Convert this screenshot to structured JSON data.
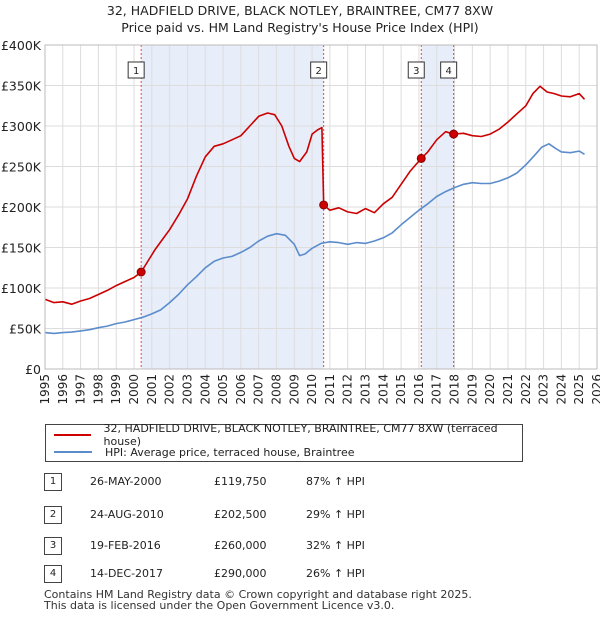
{
  "title": {
    "line1": "32, HADFIELD DRIVE, BLACK NOTLEY, BRAINTREE, CM77 8XW",
    "line2": "Price paid vs. HM Land Registry's House Price Index (HPI)"
  },
  "colors": {
    "property": "#cc0000",
    "hpi": "#5b8ccc",
    "shade": "#e8eef9",
    "marker_border": "#333333"
  },
  "chart_data": {
    "type": "line",
    "ylim": [
      0,
      400000
    ],
    "xlim": [
      1995,
      2026
    ],
    "y_ticks": [
      {
        "value": 0,
        "label": "£0"
      },
      {
        "value": 50000,
        "label": "£50K"
      },
      {
        "value": 100000,
        "label": "£100K"
      },
      {
        "value": 150000,
        "label": "£150K"
      },
      {
        "value": 200000,
        "label": "£200K"
      },
      {
        "value": 250000,
        "label": "£250K"
      },
      {
        "value": 300000,
        "label": "£300K"
      },
      {
        "value": 350000,
        "label": "£350K"
      },
      {
        "value": 400000,
        "label": "£400K"
      }
    ],
    "x_ticks": [
      "1995",
      "1996",
      "1997",
      "1998",
      "1999",
      "2000",
      "2001",
      "2002",
      "2003",
      "2004",
      "2005",
      "2006",
      "2007",
      "2008",
      "2009",
      "2010",
      "2011",
      "2012",
      "2013",
      "2014",
      "2015",
      "2016",
      "2017",
      "2018",
      "2019",
      "2020",
      "2021",
      "2022",
      "2023",
      "2024",
      "2025",
      "2026"
    ],
    "shaded_periods": [
      [
        2000.4,
        2010.65
      ],
      [
        2016.13,
        2017.95
      ]
    ],
    "sales": [
      {
        "id": "1",
        "x": 2000.4,
        "y": 119750
      },
      {
        "id": "2",
        "x": 2010.65,
        "y": 202500
      },
      {
        "id": "3",
        "x": 2016.13,
        "y": 260000
      },
      {
        "id": "4",
        "x": 2017.95,
        "y": 290000
      }
    ],
    "series": [
      {
        "name": "32, HADFIELD DRIVE, BLACK NOTLEY, BRAINTREE, CM77 8XW (terraced house)",
        "color": "#cc0000",
        "x": [
          1995,
          1995.5,
          1996,
          1996.5,
          1997,
          1997.5,
          1998,
          1998.5,
          1999,
          1999.5,
          2000,
          2000.4,
          2000.8,
          2001.2,
          2001.6,
          2002,
          2002.5,
          2003,
          2003.5,
          2004,
          2004.5,
          2005,
          2005.5,
          2006,
          2006.5,
          2007,
          2007.5,
          2007.9,
          2008.3,
          2008.7,
          2009,
          2009.3,
          2009.7,
          2010,
          2010.3,
          2010.55,
          2010.65,
          2011,
          2011.5,
          2012,
          2012.5,
          2013,
          2013.5,
          2014,
          2014.5,
          2015,
          2015.5,
          2016.13,
          2016.5,
          2017,
          2017.5,
          2017.95,
          2018.5,
          2019,
          2019.5,
          2020,
          2020.5,
          2021,
          2021.5,
          2022,
          2022.4,
          2022.8,
          2023.2,
          2023.6,
          2024,
          2024.5,
          2025,
          2025.3
        ],
        "y": [
          86000,
          82000,
          83000,
          80000,
          84000,
          87000,
          92000,
          97000,
          103000,
          108000,
          113000,
          119750,
          134000,
          148000,
          160000,
          172000,
          190000,
          210000,
          238000,
          262000,
          275000,
          278000,
          283000,
          288000,
          300000,
          312000,
          316000,
          314000,
          300000,
          275000,
          260000,
          256000,
          268000,
          290000,
          295000,
          298000,
          202500,
          196000,
          199000,
          194000,
          192000,
          198000,
          193000,
          204000,
          212000,
          228000,
          244000,
          260000,
          268000,
          283000,
          293000,
          290000,
          291000,
          288000,
          287000,
          290000,
          296000,
          305000,
          315000,
          325000,
          340000,
          349000,
          342000,
          340000,
          337000,
          336000,
          340000,
          333000
        ]
      },
      {
        "name": "HPI: Average price, terraced house, Braintree",
        "color": "#5b8ccc",
        "x": [
          1995,
          1995.5,
          1996,
          1996.5,
          1997,
          1997.5,
          1998,
          1998.5,
          1999,
          1999.5,
          2000,
          2000.5,
          2001,
          2001.5,
          2002,
          2002.5,
          2003,
          2003.5,
          2004,
          2004.5,
          2005,
          2005.5,
          2006,
          2006.5,
          2007,
          2007.5,
          2008,
          2008.5,
          2009,
          2009.3,
          2009.6,
          2010,
          2010.5,
          2011,
          2011.5,
          2012,
          2012.5,
          2013,
          2013.5,
          2014,
          2014.5,
          2015,
          2015.5,
          2016,
          2016.5,
          2017,
          2017.5,
          2018,
          2018.5,
          2019,
          2019.5,
          2020,
          2020.5,
          2021,
          2021.5,
          2022,
          2022.5,
          2022.9,
          2023.3,
          2023.7,
          2024,
          2024.5,
          2025,
          2025.3
        ],
        "y": [
          45000,
          44000,
          45000,
          45500,
          47000,
          48500,
          51000,
          53000,
          56000,
          58000,
          61000,
          64000,
          68000,
          73000,
          82000,
          92000,
          104000,
          114000,
          125000,
          133000,
          137000,
          139000,
          144000,
          150000,
          158000,
          164000,
          167000,
          165000,
          154000,
          140000,
          142000,
          149000,
          155000,
          157000,
          156000,
          154000,
          156000,
          155000,
          158000,
          162000,
          168000,
          178000,
          187000,
          196000,
          204000,
          213000,
          219000,
          224000,
          228000,
          230000,
          229000,
          229000,
          232000,
          236000,
          242000,
          252000,
          264000,
          274000,
          278000,
          272000,
          268000,
          267000,
          269000,
          265000
        ]
      }
    ]
  },
  "legend": {
    "property": "32, HADFIELD DRIVE, BLACK NOTLEY, BRAINTREE, CM77 8XW (terraced house)",
    "hpi": "HPI: Average price, terraced house, Braintree"
  },
  "sales_table": [
    {
      "num": "1",
      "date": "26-MAY-2000",
      "price": "£119,750",
      "hpi": "87% ↑ HPI"
    },
    {
      "num": "2",
      "date": "24-AUG-2010",
      "price": "£202,500",
      "hpi": "29% ↑ HPI"
    },
    {
      "num": "3",
      "date": "19-FEB-2016",
      "price": "£260,000",
      "hpi": "32% ↑ HPI"
    },
    {
      "num": "4",
      "date": "14-DEC-2017",
      "price": "£290,000",
      "hpi": "26% ↑ HPI"
    }
  ],
  "footer": {
    "line1": "Contains HM Land Registry data © Crown copyright and database right 2025.",
    "line2": "This data is licensed under the Open Government Licence v3.0."
  }
}
